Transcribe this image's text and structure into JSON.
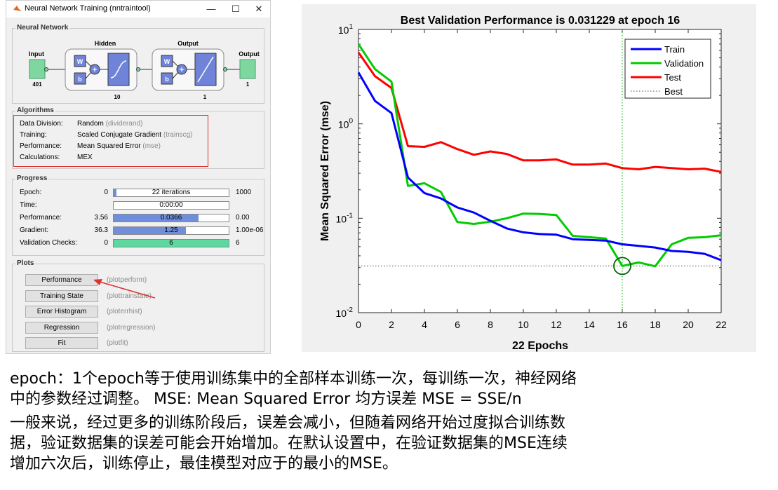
{
  "window": {
    "title": "Neural Network Training (nntraintool)",
    "controls": {
      "minimize": "—",
      "maximize": "☐",
      "close": "✕"
    }
  },
  "network": {
    "group_label": "Neural Network",
    "input_label": "Input",
    "input_size": "401",
    "hidden_label": "Hidden",
    "hidden_size": "10",
    "output_layer_label": "Output",
    "output_layer_size": "1",
    "output_label": "Output",
    "output_size": "1",
    "w": "W",
    "b": "b",
    "plus": "+"
  },
  "algorithms": {
    "group_label": "Algorithms",
    "rows": [
      {
        "label": "Data Division:",
        "value": "Random",
        "fn": "(dividerand)"
      },
      {
        "label": "Training:",
        "value": "Scaled Conjugate Gradient",
        "fn": "(trainscg)"
      },
      {
        "label": "Performance:",
        "value": "Mean Squared Error",
        "fn": "(mse)"
      },
      {
        "label": "Calculations:",
        "value": "MEX",
        "fn": ""
      }
    ]
  },
  "progress": {
    "group_label": "Progress",
    "rows": [
      {
        "label": "Epoch:",
        "start": "0",
        "bar_text": "22 iterations",
        "end": "1000",
        "fill": 0.022,
        "color": "#6f8fdc"
      },
      {
        "label": "Time:",
        "start": "",
        "bar_text": "0:00:00",
        "end": "",
        "fill": 0,
        "color": "#6f8fdc"
      },
      {
        "label": "Performance:",
        "start": "3.56",
        "bar_text": "0.0366",
        "end": "0.00",
        "fill": 0.74,
        "color": "#6f8fdc"
      },
      {
        "label": "Gradient:",
        "start": "36.3",
        "bar_text": "1.25",
        "end": "1.00e-06",
        "fill": 0.63,
        "color": "#6f8fdc"
      },
      {
        "label": "Validation Checks:",
        "start": "0",
        "bar_text": "6",
        "end": "6",
        "fill": 1.0,
        "color": "#5fd8a0"
      }
    ]
  },
  "plots": {
    "group_label": "Plots",
    "buttons": [
      {
        "label": "Performance",
        "fn": "(plotperform)"
      },
      {
        "label": "Training State",
        "fn": "(plottrainstate)"
      },
      {
        "label": "Error Histogram",
        "fn": "(ploterrhist)"
      },
      {
        "label": "Regression",
        "fn": "(plotregression)"
      },
      {
        "label": "Fit",
        "fn": "(plotfit)"
      }
    ]
  },
  "chart_data": {
    "type": "line",
    "title": "Best Validation Performance is 0.031229 at epoch 16",
    "xlabel": "22 Epochs",
    "ylabel": "Mean Squared Error  (mse)",
    "xlim": [
      0,
      22
    ],
    "ylim": [
      0.01,
      10
    ],
    "yscale": "log",
    "xticks": [
      0,
      2,
      4,
      6,
      8,
      10,
      12,
      14,
      16,
      18,
      20,
      22
    ],
    "yticks": [
      0.01,
      0.1,
      1,
      10
    ],
    "ytick_labels": [
      {
        "base": "10",
        "exp": "-2"
      },
      {
        "base": "10",
        "exp": "-1"
      },
      {
        "base": "10",
        "exp": "0"
      },
      {
        "base": "10",
        "exp": "1"
      }
    ],
    "x": [
      0,
      1,
      2,
      3,
      4,
      5,
      6,
      7,
      8,
      9,
      10,
      11,
      12,
      13,
      14,
      15,
      16,
      17,
      18,
      19,
      20,
      21,
      22
    ],
    "series": [
      {
        "name": "Train",
        "color": "#0000ff",
        "values": [
          3.5,
          1.75,
          1.3,
          0.27,
          0.185,
          0.162,
          0.13,
          0.115,
          0.094,
          0.078,
          0.071,
          0.068,
          0.067,
          0.06,
          0.059,
          0.058,
          0.053,
          0.051,
          0.049,
          0.045,
          0.044,
          0.042,
          0.036
        ]
      },
      {
        "name": "Validation",
        "color": "#00cc00",
        "values": [
          7.0,
          3.8,
          2.8,
          0.22,
          0.235,
          0.19,
          0.091,
          0.087,
          0.092,
          0.1,
          0.112,
          0.111,
          0.108,
          0.065,
          0.063,
          0.061,
          0.031229,
          0.034,
          0.031,
          0.053,
          0.062,
          0.063,
          0.066
        ]
      },
      {
        "name": "Test",
        "color": "#ff0000",
        "values": [
          5.7,
          3.2,
          2.4,
          0.58,
          0.57,
          0.64,
          0.54,
          0.47,
          0.51,
          0.48,
          0.41,
          0.41,
          0.42,
          0.37,
          0.37,
          0.38,
          0.34,
          0.33,
          0.35,
          0.34,
          0.33,
          0.335,
          0.31
        ]
      }
    ],
    "best": {
      "name": "Best",
      "epoch": 16,
      "value": 0.031229
    },
    "legend_position": "top-right",
    "grid": false
  },
  "explanation": {
    "lines": [
      "epoch：1个epoch等于使用训练集中的全部样本训练一次，每训练一次，神经网络",
      "中的参数经过调整。 MSE: Mean Squared Error   均方误差   MSE = SSE/n",
      "一般来说，经过更多的训练阶段后，误差会减小，但随着网络开始过度拟合训练数",
      "据，验证数据集的误差可能会开始增加。在默认设置中，在验证数据集的MSE连续",
      "增加六次后，训练停止，最佳模型对应于的最小的MSE。"
    ]
  },
  "colors": {
    "window_bg": "#f0f0f0",
    "network_block": "#a8a8e8",
    "io_block": "#7fd7a0",
    "annotation_red": "#e03030"
  }
}
